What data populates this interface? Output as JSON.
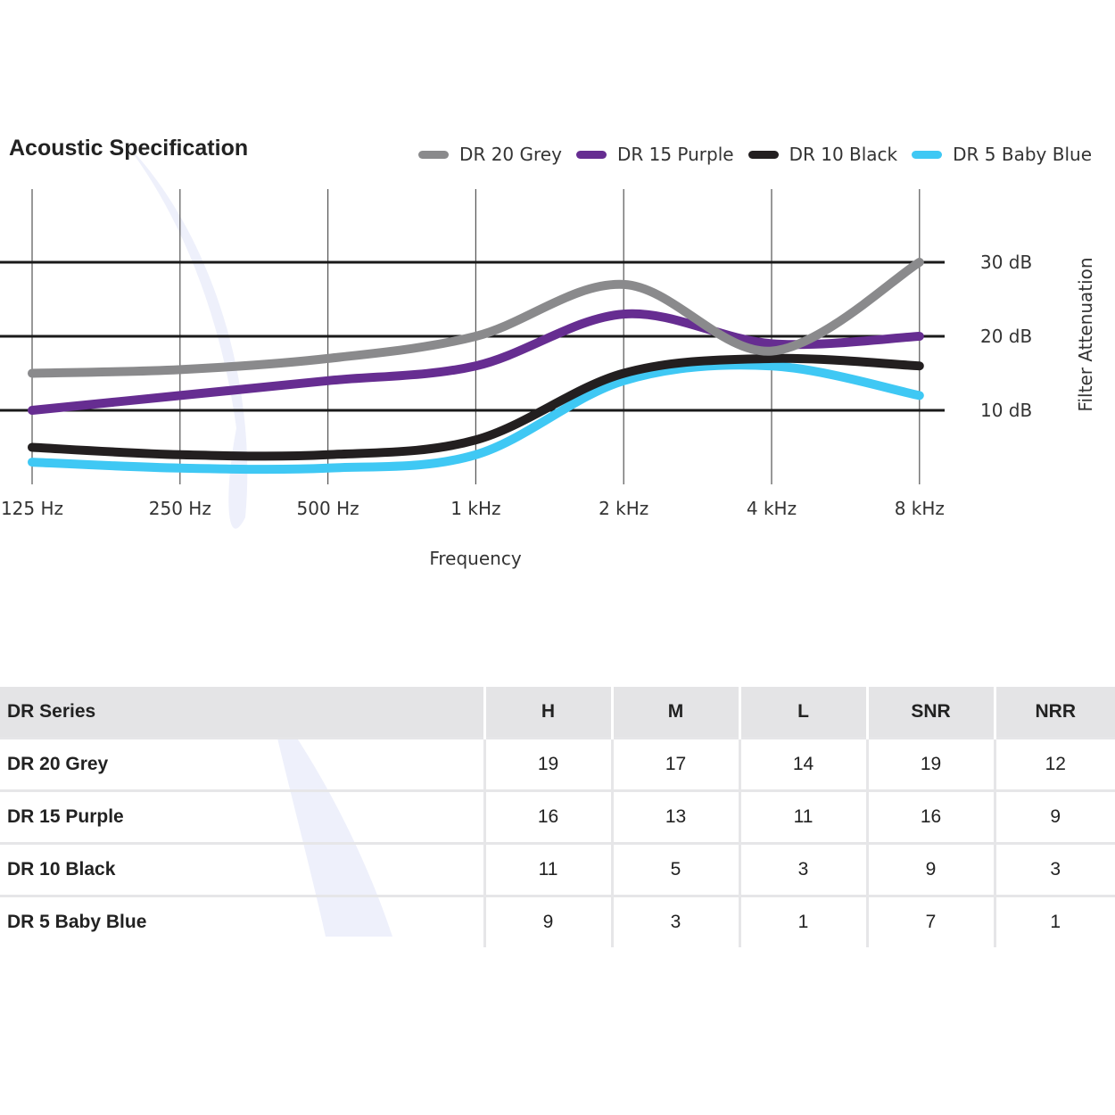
{
  "colors": {
    "grey": "#8a8a8c",
    "purple": "#662d91",
    "black": "#231f20",
    "baby_blue": "#3fc8f4",
    "grid": "#1a1a1a",
    "header_bg": "#e4e4e6",
    "watermark": "#eef0fb"
  },
  "chart_data": {
    "type": "line",
    "title": "Acoustic Specification",
    "xlabel": "Frequency",
    "ylabel": "Filter Attenuation",
    "categories": [
      "125 Hz",
      "250 Hz",
      "500 Hz",
      "1 kHz",
      "2 kHz",
      "4 kHz",
      "8 kHz"
    ],
    "y_ticks": [
      {
        "value": 10,
        "label": "10 dB"
      },
      {
        "value": 20,
        "label": "20 dB"
      },
      {
        "value": 30,
        "label": "30 dB"
      }
    ],
    "ylim": [
      0,
      40
    ],
    "legend_position": "top-right",
    "series": [
      {
        "name": "DR 20 Grey",
        "color_key": "grey",
        "values": [
          15,
          15.5,
          17,
          20,
          27,
          18,
          30
        ]
      },
      {
        "name": "DR 15 Purple",
        "color_key": "purple",
        "values": [
          10,
          12,
          14,
          16,
          23,
          19,
          20
        ]
      },
      {
        "name": "DR 10 Black",
        "color_key": "black",
        "values": [
          5,
          4,
          4,
          6,
          15,
          17,
          16
        ]
      },
      {
        "name": "DR 5 Baby Blue",
        "color_key": "baby_blue",
        "values": [
          3,
          2.2,
          2.2,
          4,
          14,
          16,
          12
        ]
      }
    ]
  },
  "table": {
    "headers": [
      "DR Series",
      "H",
      "M",
      "L",
      "SNR",
      "NRR"
    ],
    "rows": [
      {
        "name": "DR 20 Grey",
        "cells": [
          "19",
          "17",
          "14",
          "19",
          "12"
        ]
      },
      {
        "name": "DR 15 Purple",
        "cells": [
          "16",
          "13",
          "11",
          "16",
          "9"
        ]
      },
      {
        "name": "DR 10 Black",
        "cells": [
          "11",
          "5",
          "3",
          "9",
          "3"
        ]
      },
      {
        "name": "DR 5 Baby Blue",
        "cells": [
          "9",
          "3",
          "1",
          "7",
          "1"
        ]
      }
    ]
  }
}
